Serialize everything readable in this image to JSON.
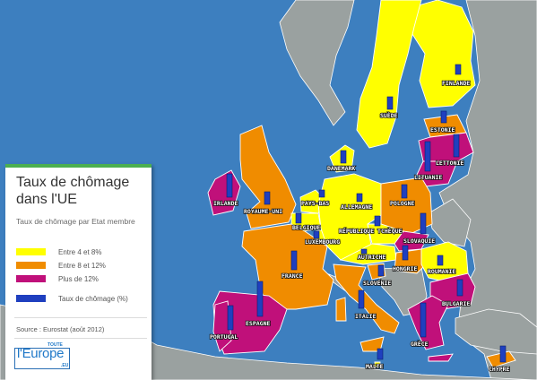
{
  "legend": {
    "title": "Taux de chômage dans l'UE",
    "subtitle": "Taux de chômage par Etat membre",
    "items": [
      {
        "label": "Entre 4 et 8%",
        "color": "#ffff00"
      },
      {
        "label": "Entre 8 et 12%",
        "color": "#f08c00"
      },
      {
        "label": "Plus de 12%",
        "color": "#c0107a"
      },
      {
        "label": "Taux de chômage (%)",
        "color": "#1f3fbf"
      }
    ],
    "source": "Source : Eurostat (août 2012)"
  },
  "logo": {
    "main": "l'Europe",
    "top": "TOUTE",
    "suffix": ".EU"
  },
  "colors": {
    "sea": "#3d7fbf",
    "land": "#9aa1a0",
    "low": "#ffff00",
    "mid": "#f08c00",
    "high": "#c0107a",
    "bar": "#1f3fbf"
  },
  "countries": [
    {
      "name": "FINLANDE",
      "category": "low"
    },
    {
      "name": "SUÈDE",
      "category": "low"
    },
    {
      "name": "ESTONIE",
      "category": "mid"
    },
    {
      "name": "LETTONIE",
      "category": "high"
    },
    {
      "name": "LITUANIE",
      "category": "high"
    },
    {
      "name": "DANEMARK",
      "category": "low"
    },
    {
      "name": "IRLANDE",
      "category": "high"
    },
    {
      "name": "ROYAUME-UNI",
      "category": "mid"
    },
    {
      "name": "PAYS-BAS",
      "category": "low"
    },
    {
      "name": "BELGIQUE",
      "category": "low"
    },
    {
      "name": "LUXEMBOURG",
      "category": "low"
    },
    {
      "name": "ALLEMAGNE",
      "category": "low"
    },
    {
      "name": "POLOGNE",
      "category": "mid"
    },
    {
      "name": "RÉPUBLIQUE TCHÈQUE",
      "category": "low"
    },
    {
      "name": "SLOVAQUIE",
      "category": "high"
    },
    {
      "name": "AUTRICHE",
      "category": "low"
    },
    {
      "name": "HONGRIE",
      "category": "mid"
    },
    {
      "name": "FRANCE",
      "category": "mid"
    },
    {
      "name": "SLOVÉNIE",
      "category": "mid"
    },
    {
      "name": "ROUMANIE",
      "category": "low"
    },
    {
      "name": "BULGARIE",
      "category": "high"
    },
    {
      "name": "ITALIE",
      "category": "mid"
    },
    {
      "name": "ESPAGNE",
      "category": "high"
    },
    {
      "name": "PORTUGAL",
      "category": "high"
    },
    {
      "name": "GRÈCE",
      "category": "high"
    },
    {
      "name": "MALTE",
      "category": "low"
    },
    {
      "name": "CHYPRE",
      "category": "mid"
    }
  ]
}
